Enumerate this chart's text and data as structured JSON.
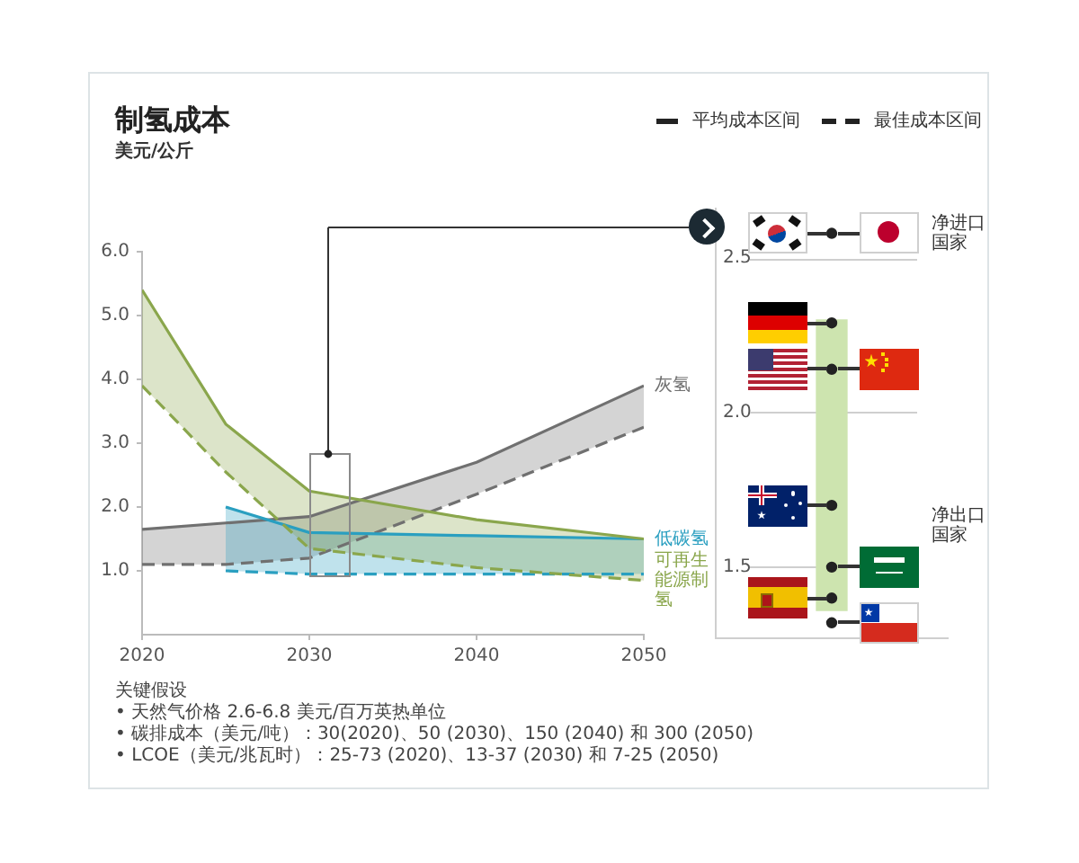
{
  "chart_data": [
    {
      "type": "line",
      "title": "制氢成本",
      "subtitle": "美元/公斤",
      "x": [
        2020,
        2025,
        2030,
        2040,
        2050
      ],
      "xlim": [
        2020,
        2050
      ],
      "xticks": [
        2020,
        2030,
        2040,
        2050
      ],
      "ylim": [
        0,
        6
      ],
      "yticks": [
        {
          "value": 1,
          "label": "1.0"
        },
        {
          "value": 2,
          "label": "2.0"
        },
        {
          "value": 3,
          "label": "3.0"
        },
        {
          "value": 4,
          "label": "4.0"
        },
        {
          "value": 5,
          "label": "5.0"
        },
        {
          "value": 6,
          "label": "6.0"
        }
      ],
      "legend": "top right",
      "series": [
        {
          "name": "灰氢",
          "color": "#707070",
          "line_style": "solid",
          "values": [
            1.65,
            1.75,
            1.85,
            2.7,
            3.9
          ],
          "lower": [
            1.1,
            1.1,
            1.2,
            2.2,
            3.25
          ],
          "upper": [
            1.65,
            1.75,
            1.85,
            2.7,
            3.9
          ]
        },
        {
          "color": "#707070",
          "line_style": "dashed",
          "values": [
            1.1,
            1.1,
            1.2,
            2.2,
            3.25
          ]
        },
        {
          "name": "低碳氢",
          "color": "#2a9fc0",
          "line_style": "solid",
          "values": [
            null,
            2.0,
            1.6,
            1.55,
            1.5
          ],
          "lower": [
            null,
            1.0,
            0.95,
            0.95,
            0.95
          ],
          "upper": [
            null,
            2.0,
            1.6,
            1.55,
            1.5
          ]
        },
        {
          "color": "#2a9fc0",
          "line_style": "dashed",
          "values": [
            null,
            1.0,
            0.95,
            0.95,
            0.95
          ]
        },
        {
          "name": "可再生能源制氢",
          "color": "#8aa64c",
          "line_style": "solid",
          "values": [
            5.4,
            3.3,
            2.25,
            1.8,
            1.5
          ],
          "lower": [
            3.9,
            2.55,
            1.35,
            1.05,
            0.85
          ],
          "upper": [
            5.4,
            3.3,
            2.25,
            1.8,
            1.5
          ]
        },
        {
          "color": "#8aa64c",
          "line_style": "dashed",
          "values": [
            3.9,
            2.55,
            1.35,
            1.05,
            0.85
          ]
        },
        {
          "name": "平均成本区间",
          "color": "#222222",
          "line_style": "solid",
          "values": [
            null,
            null,
            null,
            null,
            null
          ]
        },
        {
          "name": "最佳成本区间",
          "color": "#222222",
          "line_style": "dashed",
          "values": [
            null,
            null,
            null,
            null,
            null
          ]
        }
      ],
      "annotations": [
        "关键假设",
        "• 天然气价格 2.6-6.8 美元/百万英热单位",
        "• 碳排成本（美元/吨）：30(2020)、50 (2030)、150 (2040) 和 300 (2050)",
        "• LCOE（美元/兆瓦时）：25-73 (2020)、13-37 (2030) 和 7-25 (2050)"
      ]
    },
    {
      "type": "scatter",
      "categories": [
        null
      ],
      "ylim": [
        1.27,
        2.66
      ],
      "yticks": [
        1.5,
        {
          "value": 2,
          "label": "2.0"
        },
        2.5
      ],
      "grid": "y",
      "tick_labels": "y",
      "marker": "circle",
      "series": [
        {
          "type": "bar",
          "color": "#cde4af",
          "values": [
            0.94
          ],
          "base": [
            1.36
          ]
        },
        {
          "color": "#222222",
          "values": [
            2.58
          ]
        },
        {
          "color": "#222222",
          "values": [
            2.29
          ]
        },
        {
          "color": "#222222",
          "values": [
            2.14
          ]
        },
        {
          "color": "#222222",
          "values": [
            1.7
          ]
        },
        {
          "color": "#222222",
          "values": [
            1.5
          ]
        },
        {
          "color": "#222222",
          "values": [
            1.4
          ]
        },
        {
          "color": "#222222",
          "values": [
            1.32
          ]
        }
      ],
      "annotations": [
        "净进口国家",
        "净出口国家"
      ]
    }
  ]
}
